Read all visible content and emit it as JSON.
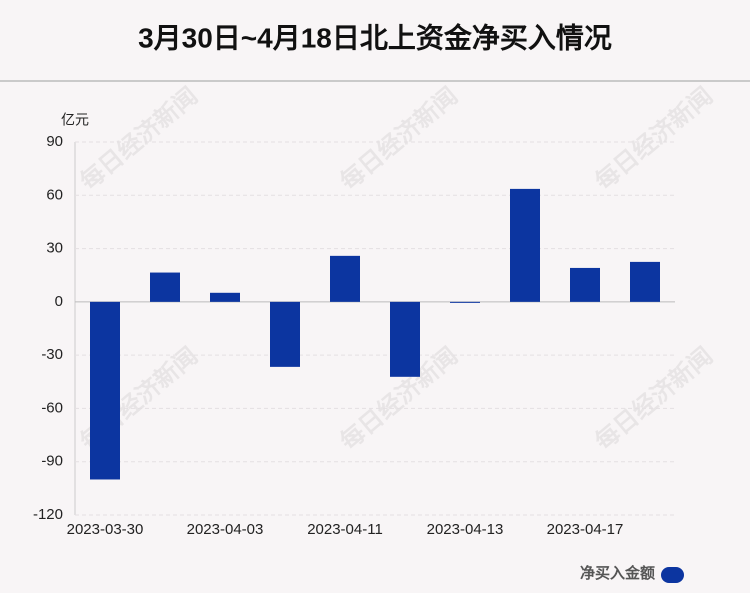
{
  "chart_data": {
    "type": "bar",
    "title": "3月30日~4月18日北上资金净买入情况",
    "y_unit": "亿元",
    "watermark": "每日经济新闻",
    "categories": [
      "2023-03-30",
      null,
      "2023-04-03",
      null,
      "2023-04-11",
      null,
      "2023-04-13",
      null,
      "2023-04-17",
      null
    ],
    "series": [
      {
        "name": "净买入金额",
        "color": "#0c35a0",
        "values": [
          -100,
          16.5,
          5.1,
          -36.6,
          25.9,
          -42.2,
          -0.5,
          63.6,
          19.1,
          22.5
        ]
      }
    ],
    "ylim": [
      -120,
      90
    ],
    "yticks": [
      -120,
      -90,
      -60,
      -30,
      0,
      30,
      60,
      90
    ],
    "grid": true,
    "legend": "bottom-right"
  }
}
